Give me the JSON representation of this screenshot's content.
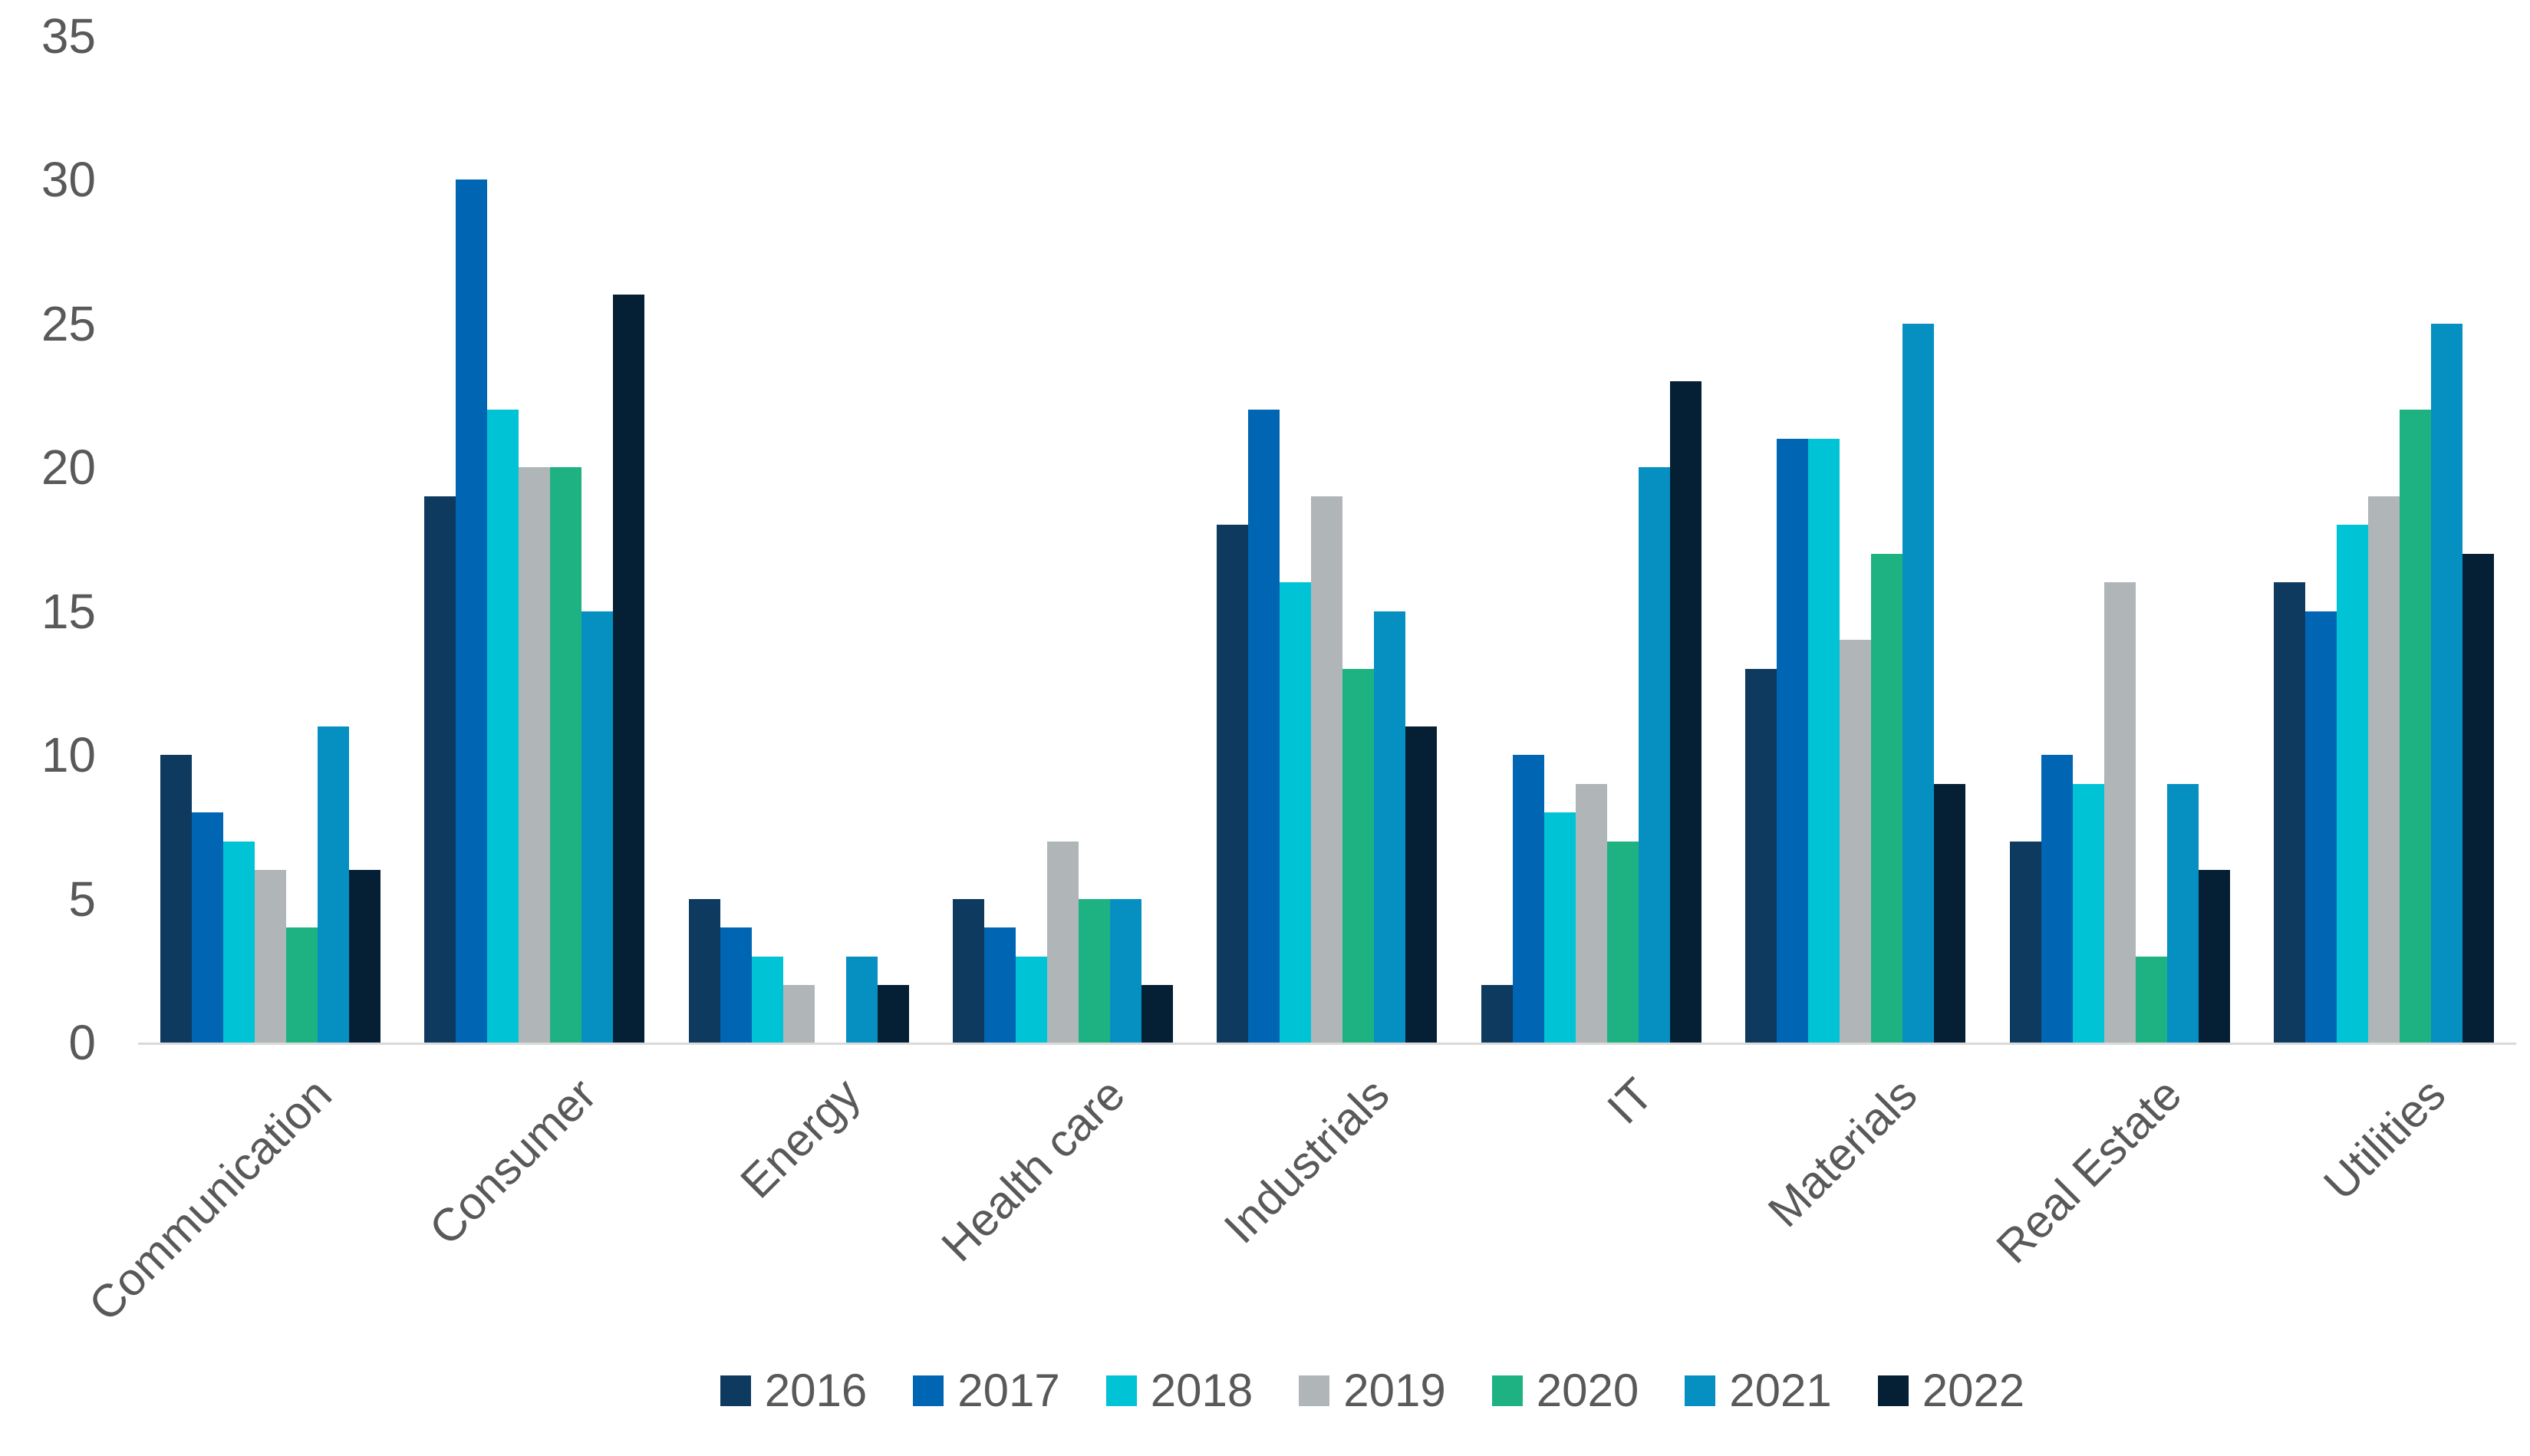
{
  "chart_data": {
    "type": "bar",
    "title": "",
    "xlabel": "",
    "ylabel": "",
    "categories": [
      "Communication",
      "Consumer",
      "Energy",
      "Health care",
      "Industrials",
      "IT",
      "Materials",
      "Real Estate",
      "Utilities"
    ],
    "series": [
      {
        "name": "2016",
        "color": "#0e3a5f",
        "values": [
          10,
          19,
          5,
          5,
          18,
          2,
          13,
          7,
          16
        ]
      },
      {
        "name": "2017",
        "color": "#0065b3",
        "values": [
          8,
          30,
          4,
          4,
          22,
          10,
          21,
          10,
          15
        ]
      },
      {
        "name": "2018",
        "color": "#00c4d6",
        "values": [
          7,
          22,
          3,
          3,
          16,
          8,
          21,
          9,
          18
        ]
      },
      {
        "name": "2019",
        "color": "#b0b5b8",
        "values": [
          6,
          20,
          2,
          7,
          19,
          9,
          14,
          16,
          19
        ]
      },
      {
        "name": "2020",
        "color": "#1eb283",
        "values": [
          4,
          20,
          0,
          5,
          13,
          7,
          17,
          3,
          22
        ]
      },
      {
        "name": "2021",
        "color": "#0690c2",
        "values": [
          11,
          15,
          3,
          5,
          15,
          20,
          25,
          9,
          25
        ]
      },
      {
        "name": "2022",
        "color": "#051f35",
        "values": [
          6,
          26,
          2,
          2,
          11,
          23,
          9,
          6,
          17
        ]
      }
    ],
    "ylim": [
      0,
      35
    ],
    "yticks": [
      0,
      5,
      10,
      15,
      20,
      25,
      30,
      35
    ],
    "grid": false,
    "legend_position": "bottom",
    "axis_text_color": "#595959",
    "baseline_color": "#d9d9d9"
  }
}
